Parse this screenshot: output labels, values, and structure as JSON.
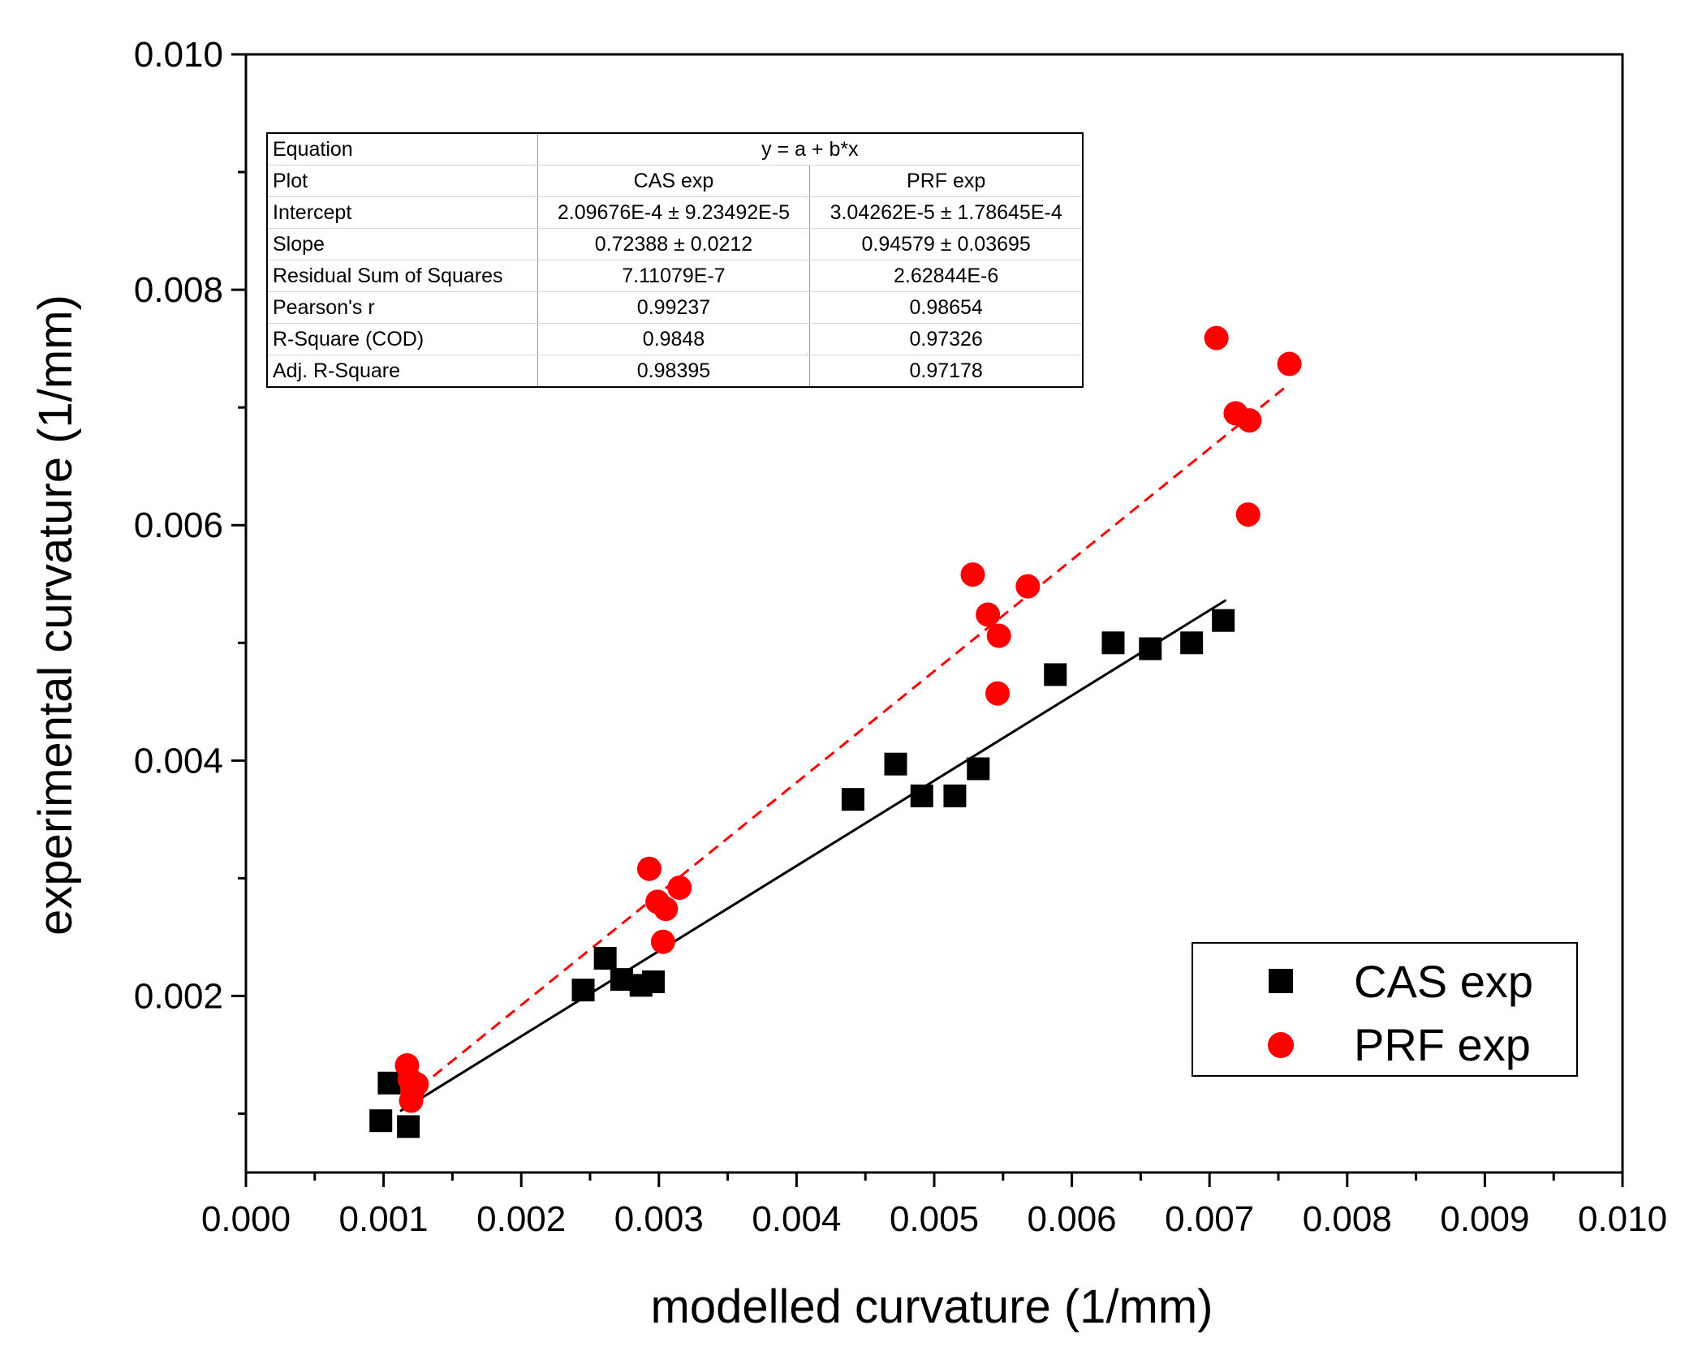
{
  "chart_data": {
    "type": "scatter",
    "xlabel": "modelled curvature (1/mm)",
    "ylabel": "experimental curvature (1/mm)",
    "xlim": [
      0.0,
      0.01
    ],
    "ylim": [
      0.0005,
      0.01
    ],
    "x_ticks": [
      "0.000",
      "0.001",
      "0.002",
      "0.003",
      "0.004",
      "0.005",
      "0.006",
      "0.007",
      "0.008",
      "0.009",
      "0.010"
    ],
    "x_tick_values": [
      0.0,
      0.001,
      0.002,
      0.003,
      0.004,
      0.005,
      0.006,
      0.007,
      0.008,
      0.009,
      0.01
    ],
    "y_ticks": [
      "0.002",
      "0.004",
      "0.006",
      "0.008",
      "0.010"
    ],
    "y_tick_values": [
      0.002,
      0.004,
      0.006,
      0.008,
      0.01
    ],
    "legend_position": "bottom-right",
    "series": [
      {
        "name": "CAS exp",
        "marker": "square",
        "color": "#000000",
        "points": [
          [
            0.00098,
            0.00094
          ],
          [
            0.00104,
            0.00126
          ],
          [
            0.00118,
            0.00089
          ],
          [
            0.00245,
            0.00205
          ],
          [
            0.00261,
            0.00232
          ],
          [
            0.00273,
            0.00214
          ],
          [
            0.00287,
            0.00209
          ],
          [
            0.00296,
            0.00212
          ],
          [
            0.00441,
            0.00367
          ],
          [
            0.00472,
            0.00397
          ],
          [
            0.00491,
            0.0037
          ],
          [
            0.00515,
            0.0037
          ],
          [
            0.00532,
            0.00393
          ],
          [
            0.00588,
            0.00473
          ],
          [
            0.0063,
            0.005
          ],
          [
            0.00657,
            0.00495
          ],
          [
            0.00687,
            0.005
          ],
          [
            0.0071,
            0.00519
          ]
        ],
        "fit": {
          "intercept": 0.000209676,
          "slope": 0.72388,
          "x_range": [
            0.00112,
            0.00712
          ],
          "style": "solid"
        }
      },
      {
        "name": "PRF exp",
        "marker": "circle",
        "color": "#ff0000",
        "points": [
          [
            0.00117,
            0.00141
          ],
          [
            0.00119,
            0.00129
          ],
          [
            0.00121,
            0.00119
          ],
          [
            0.00124,
            0.00125
          ],
          [
            0.0012,
            0.00111
          ],
          [
            0.00293,
            0.00308
          ],
          [
            0.00299,
            0.0028
          ],
          [
            0.00305,
            0.00274
          ],
          [
            0.00315,
            0.00292
          ],
          [
            0.00303,
            0.00246
          ],
          [
            0.00528,
            0.00558
          ],
          [
            0.00539,
            0.00524
          ],
          [
            0.00547,
            0.00506
          ],
          [
            0.00546,
            0.00457
          ],
          [
            0.00568,
            0.00548
          ],
          [
            0.00705,
            0.00759
          ],
          [
            0.00719,
            0.00695
          ],
          [
            0.00729,
            0.00689
          ],
          [
            0.00728,
            0.00609
          ],
          [
            0.00758,
            0.00737
          ]
        ],
        "fit": {
          "intercept": 3.04262e-05,
          "slope": 0.94579,
          "x_range": [
            0.00115,
            0.00758
          ],
          "style": "dashed"
        }
      }
    ],
    "stats_table": {
      "header_label": "Equation",
      "equation": "y = a + b*x",
      "rows": [
        {
          "label": "Plot",
          "cas": "CAS exp",
          "prf": "PRF exp"
        },
        {
          "label": "Intercept",
          "cas": "2.09676E-4 ± 9.23492E-5",
          "prf": "3.04262E-5 ± 1.78645E-4"
        },
        {
          "label": "Slope",
          "cas": "0.72388 ± 0.0212",
          "prf": "0.94579 ± 0.03695"
        },
        {
          "label": "Residual Sum of Squares",
          "cas": "7.11079E-7",
          "prf": "2.62844E-6"
        },
        {
          "label": "Pearson's r",
          "cas": "0.99237",
          "prf": "0.98654"
        },
        {
          "label": "R-Square (COD)",
          "cas": "0.9848",
          "prf": "0.97326"
        },
        {
          "label": "Adj. R-Square",
          "cas": "0.98395",
          "prf": "0.97178"
        }
      ]
    }
  }
}
